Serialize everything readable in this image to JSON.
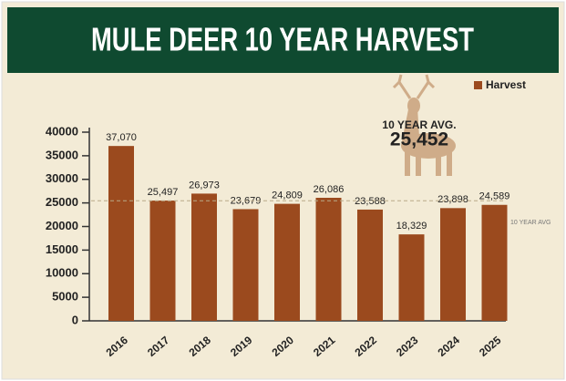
{
  "chart_data": {
    "type": "bar",
    "title": "MULE DEER 10 YEAR HARVEST",
    "categories": [
      "2016",
      "2017",
      "2018",
      "2019",
      "2020",
      "2021",
      "2022",
      "2023",
      "2024",
      "2025"
    ],
    "series": [
      {
        "name": "Harvest",
        "color": "#9b4a1e",
        "values": [
          37070,
          25497,
          26973,
          23679,
          24809,
          26086,
          23588,
          18329,
          23898,
          24589
        ],
        "value_labels": [
          "37,070",
          "25,497",
          "26,973",
          "23,679",
          "24,809",
          "26,086",
          "23,588",
          "18,329",
          "23,898",
          "24,589"
        ]
      }
    ],
    "ylim": [
      0,
      40000
    ],
    "yticks": [
      0,
      5000,
      10000,
      15000,
      20000,
      25000,
      30000,
      35000,
      40000
    ],
    "legend": "top-right",
    "average": {
      "value": 25452,
      "label": "25,452"
    },
    "average_title": "10 YEAR AVG.",
    "average_line_label": "10 YEAR AVG"
  }
}
